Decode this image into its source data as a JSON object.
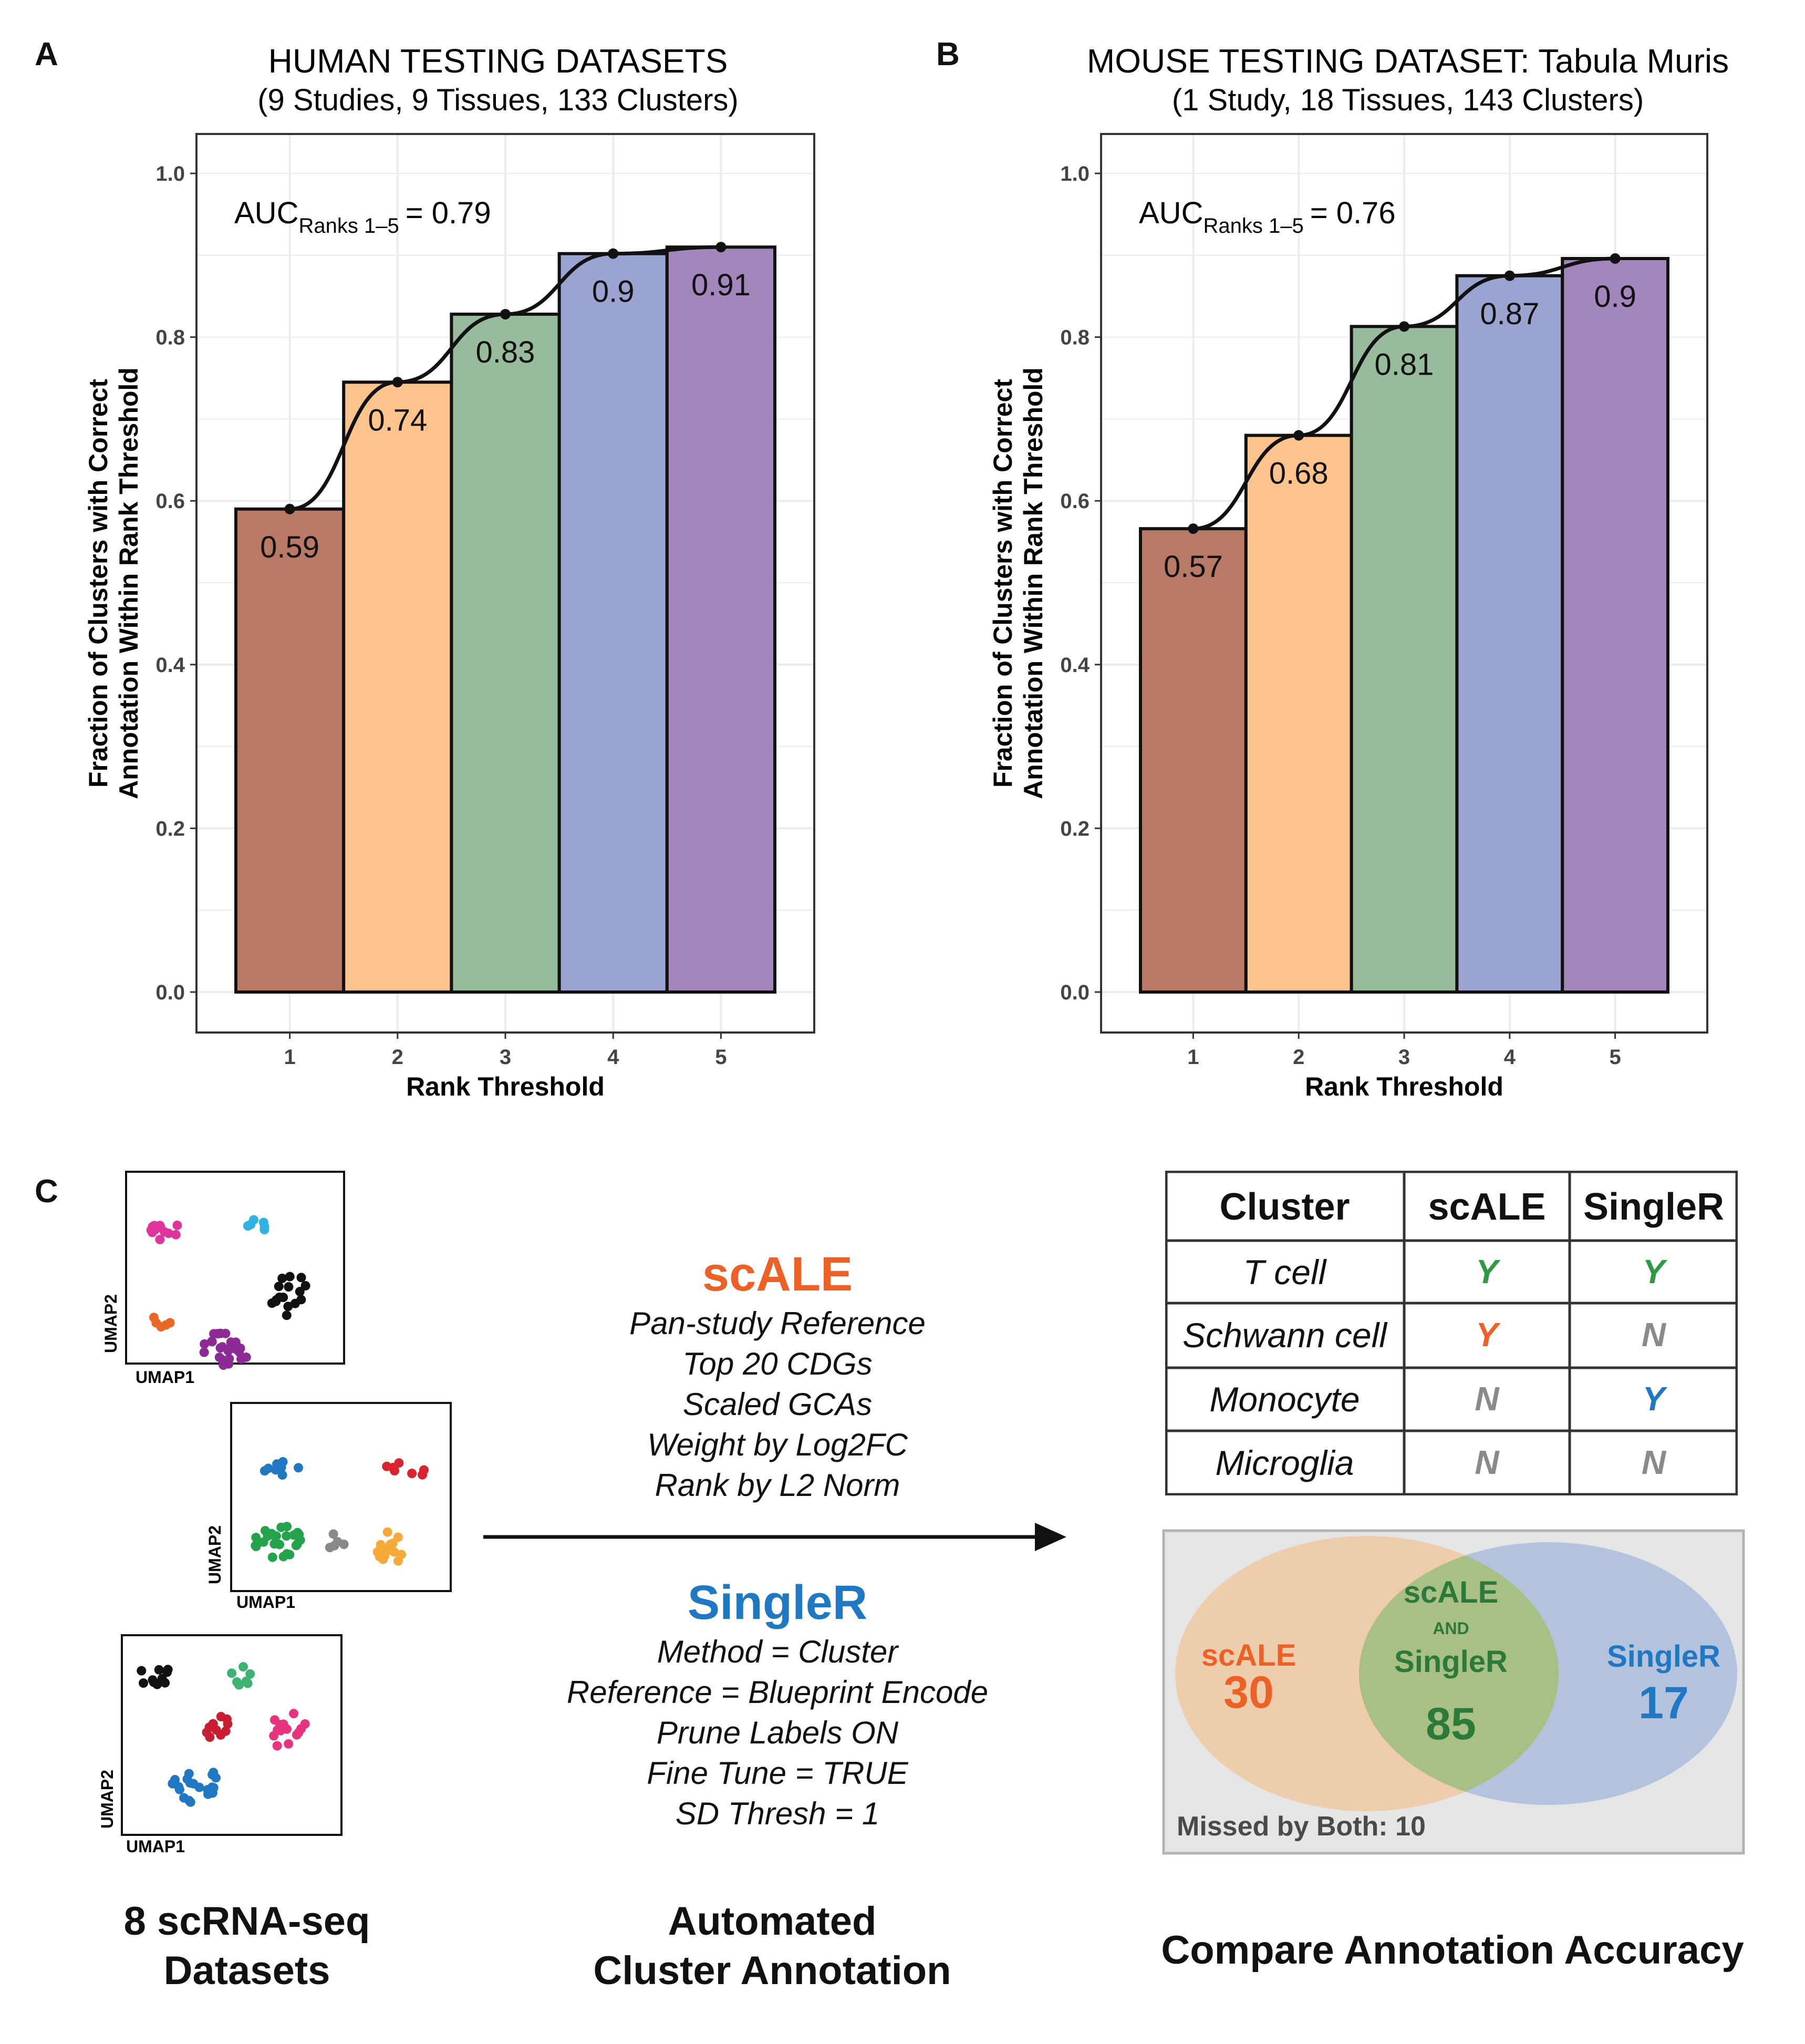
{
  "chart_data": [
    {
      "panel": "A",
      "type": "bar",
      "title": "HUMAN TESTING DATASETS",
      "subtitle": "(9 Studies, 9 Tissues, 133 Clusters)",
      "xlabel": "Rank Threshold",
      "ylabel_line1": "Fraction of Clusters with Correct",
      "ylabel_line2": "Annotation Within Rank Threshold",
      "categories": [
        "1",
        "2",
        "3",
        "4",
        "5"
      ],
      "values": [
        0.59,
        0.745,
        0.828,
        0.902,
        0.91
      ],
      "labels": [
        "0.59",
        "0.74",
        "0.83",
        "0.9",
        "0.91"
      ],
      "ylim": [
        0,
        1.05
      ],
      "yticks": [
        "0.0",
        "0.2",
        "0.4",
        "0.6",
        "0.8",
        "1.0"
      ],
      "grid": true,
      "line_overlay": true,
      "auc_prefix": "AUC",
      "auc_sub": "Ranks 1–5",
      "auc_value": "= 0.79"
    },
    {
      "panel": "B",
      "type": "bar",
      "title": "MOUSE TESTING DATASET: Tabula Muris",
      "subtitle": "(1 Study, 18 Tissues, 143 Clusters)",
      "xlabel": "Rank Threshold",
      "ylabel_line1": "Fraction of Clusters with Correct",
      "ylabel_line2": "Annotation Within Rank Threshold",
      "categories": [
        "1",
        "2",
        "3",
        "4",
        "5"
      ],
      "values": [
        0.566,
        0.68,
        0.813,
        0.875,
        0.896
      ],
      "labels": [
        "0.57",
        "0.68",
        "0.81",
        "0.87",
        "0.9"
      ],
      "ylim": [
        0,
        1.05
      ],
      "yticks": [
        "0.0",
        "0.2",
        "0.4",
        "0.6",
        "0.8",
        "1.0"
      ],
      "grid": true,
      "line_overlay": true,
      "auc_prefix": "AUC",
      "auc_sub": "Ranks 1–5",
      "auc_value": "= 0.76"
    }
  ],
  "colors": {
    "bars": [
      "#b87a67",
      "#fcc38c",
      "#98bb9c",
      "#9ba4d0",
      "#a286bc"
    ],
    "scale": "#ee6126",
    "singler": "#1f78c1",
    "both": "#2c7a3a",
    "y_green": "#2e9a45",
    "n_gray": "#8a8a8a",
    "gray_fill": "#e5e5e5"
  },
  "panel_c": {
    "letter": "C",
    "umap_x": "UMAP1",
    "umap_y": "UMAP2",
    "datasets_caption_line1": "8 scRNA-seq",
    "datasets_caption_line2": "Datasets",
    "method_caption_line1": "Automated",
    "method_caption_line2": "Cluster Annotation",
    "compare_caption": "Compare Annotation Accuracy",
    "scale_title": "scALE",
    "scale_params": [
      "Pan-study Reference",
      "Top 20 CDGs",
      "Scaled GCAs",
      "Weight by Log2FC",
      "Rank by L2 Norm"
    ],
    "singler_title": "SingleR",
    "singler_params": [
      "Method = Cluster",
      "Reference = Blueprint Encode",
      "Prune Labels ON",
      "Fine Tune = TRUE",
      "SD Thresh = 1"
    ],
    "table": {
      "headers": [
        "Cluster",
        "scALE",
        "SingleR"
      ],
      "rows": [
        {
          "cluster": "T cell",
          "scale": "Y",
          "singler": "Y"
        },
        {
          "cluster": "Schwann cell",
          "scale": "Y",
          "singler": "N"
        },
        {
          "cluster": "Monocyte",
          "scale": "N",
          "singler": "Y"
        },
        {
          "cluster": "Microglia",
          "scale": "N",
          "singler": "N"
        }
      ]
    },
    "venn": {
      "left_label": "scALE",
      "left_count": "30",
      "center_label_1": "scALE",
      "center_label_and": "AND",
      "center_label_2": "SingleR",
      "center_count": "85",
      "right_label": "SingleR",
      "right_count": "17",
      "missed": "Missed by Both: 10"
    }
  }
}
